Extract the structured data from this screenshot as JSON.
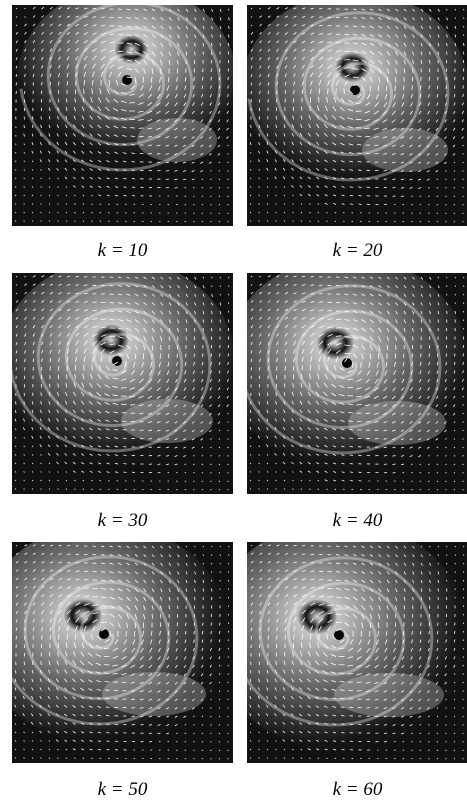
{
  "panels": [
    {
      "label": "k = 10"
    },
    {
      "label": "k = 20"
    },
    {
      "label": "k = 30"
    },
    {
      "label": "k = 40"
    },
    {
      "label": "k = 50"
    },
    {
      "label": "k = 60"
    }
  ]
}
